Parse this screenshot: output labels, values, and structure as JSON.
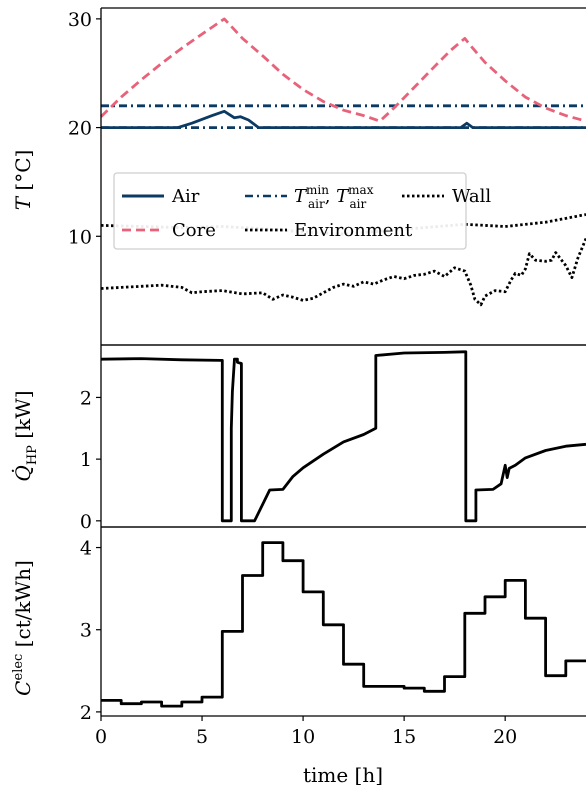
{
  "chart_data": [
    {
      "type": "line",
      "panel": "temperatures",
      "ylabel": "T [°C]",
      "ylim": [
        0,
        31
      ],
      "yticks": [
        "10",
        "20",
        "30"
      ],
      "legend_placement": "center-left",
      "legend": [
        {
          "label": "Air",
          "series": "Air"
        },
        {
          "label": "T_air^min, T_air^max",
          "series": "Tmin"
        },
        {
          "label": "Wall",
          "series": "Wall"
        },
        {
          "label": "Core",
          "series": "Core"
        },
        {
          "label": "Environment",
          "series": "Environment"
        }
      ],
      "series": [
        {
          "name": "Air",
          "color": "#0b3a63",
          "dash": "solid",
          "x": [
            0,
            3.8,
            4.5,
            5.5,
            6.1,
            6.6,
            6.9,
            7.3,
            7.8,
            8.2,
            17.8,
            18.1,
            18.4,
            24
          ],
          "y": [
            20,
            20,
            20.4,
            21.1,
            21.5,
            20.9,
            21.0,
            20.7,
            20.0,
            20.0,
            20.0,
            20.4,
            20.0,
            20.0
          ]
        },
        {
          "name": "Tmin",
          "color": "#0b3a63",
          "dash": "dashdot",
          "x": [
            0,
            24
          ],
          "y": [
            20,
            20
          ]
        },
        {
          "name": "Tmax",
          "color": "#0b3a63",
          "dash": "dashdot",
          "x": [
            0,
            24
          ],
          "y": [
            22,
            22
          ]
        },
        {
          "name": "Core",
          "color": "#e8627a",
          "dash": "dashed",
          "x": [
            0,
            1,
            2,
            3,
            4,
            5,
            6.1,
            6.6,
            7,
            8,
            9,
            10,
            11,
            12,
            13,
            13.8,
            14.5,
            15.5,
            16.5,
            17.3,
            18,
            18.4,
            19,
            20,
            21,
            22,
            23,
            24
          ],
          "y": [
            21,
            22.8,
            24.4,
            25.9,
            27.3,
            28.6,
            30.0,
            29.0,
            28.2,
            26.6,
            24.9,
            23.5,
            22.4,
            21.6,
            21.1,
            20.6,
            21.8,
            23.7,
            25.6,
            27.1,
            28.2,
            27.3,
            26.0,
            24.3,
            22.8,
            21.8,
            21.1,
            20.6
          ]
        },
        {
          "name": "Wall",
          "color": "#000000",
          "dash": "dotted",
          "x": [
            0,
            2,
            4,
            6,
            8,
            10,
            12,
            14,
            16,
            18,
            20,
            22,
            24
          ],
          "y": [
            11.0,
            10.9,
            10.8,
            10.9,
            10.7,
            10.4,
            10.2,
            10.5,
            10.8,
            11.1,
            10.9,
            11.3,
            12.0
          ]
        },
        {
          "name": "Environment",
          "color": "#000000",
          "dash": "dotted",
          "x": [
            0,
            1,
            2,
            3,
            4,
            4.5,
            5,
            6,
            7,
            8,
            8.5,
            9,
            9.5,
            10,
            10.5,
            11,
            11.5,
            12,
            12.5,
            13,
            13.5,
            14,
            14.5,
            15,
            15.5,
            16,
            16.5,
            17,
            17.5,
            18,
            18.3,
            18.5,
            18.8,
            19,
            19.5,
            20,
            20.3,
            20.5,
            20.8,
            21,
            21.2,
            21.5,
            22,
            22.3,
            22.5,
            23,
            23.3,
            23.6,
            24
          ],
          "y": [
            5.2,
            5.3,
            5.4,
            5.5,
            5.3,
            4.8,
            4.9,
            5.0,
            4.7,
            4.8,
            4.2,
            4.6,
            4.4,
            4.1,
            4.3,
            4.8,
            5.3,
            5.6,
            5.4,
            5.8,
            5.6,
            6.0,
            6.3,
            6.1,
            6.4,
            6.5,
            6.8,
            6.3,
            7.1,
            6.8,
            5.5,
            4.2,
            3.7,
            4.5,
            5.0,
            4.9,
            6.0,
            6.6,
            6.4,
            7.0,
            8.4,
            7.8,
            7.7,
            7.8,
            8.5,
            7.3,
            6.2,
            8.0,
            9.8
          ]
        }
      ]
    },
    {
      "type": "line",
      "panel": "heat_pump",
      "ylabel": "Q̇_HP [kW]",
      "ylim": [
        -0.1,
        2.85
      ],
      "yticks": [
        "0",
        "1",
        "2"
      ],
      "series": [
        {
          "name": "Q_HP",
          "color": "#000000",
          "dash": "solid",
          "x": [
            0,
            2,
            4,
            5.9,
            6.0,
            6.0,
            6.45,
            6.45,
            6.5,
            6.6,
            6.6,
            6.75,
            6.75,
            6.95,
            6.95,
            7.0,
            7.0,
            7.6,
            7.6,
            8.35,
            8.35,
            9.0,
            9.5,
            10,
            11,
            12,
            13,
            13.6,
            13.6,
            15,
            17,
            17.95,
            17.95,
            18.05,
            18.05,
            18.55,
            18.55,
            19.4,
            19.8,
            20.0,
            20.1,
            20.2,
            20.5,
            21,
            22,
            23,
            24
          ],
          "y": [
            2.62,
            2.63,
            2.61,
            2.6,
            2.6,
            0,
            0,
            1.5,
            2.1,
            2.6,
            2.62,
            2.62,
            2.57,
            2.55,
            0,
            0,
            0,
            0,
            0,
            0.5,
            0.5,
            0.51,
            0.72,
            0.86,
            1.08,
            1.28,
            1.4,
            1.5,
            2.68,
            2.72,
            2.73,
            2.74,
            2.74,
            2.74,
            0,
            0,
            0.5,
            0.51,
            0.6,
            0.9,
            0.7,
            0.85,
            0.9,
            1.02,
            1.14,
            1.21,
            1.24
          ]
        }
      ]
    },
    {
      "type": "line",
      "panel": "price",
      "ylabel": "C^elec [ct/kWh]",
      "xlabel": "time [h]",
      "xlim": [
        0,
        24
      ],
      "xticks": [
        "0",
        "5",
        "10",
        "15",
        "20"
      ],
      "ylim": [
        1.95,
        4.25
      ],
      "yticks": [
        "2",
        "3",
        "4"
      ],
      "series": [
        {
          "name": "C_elec",
          "color": "#000000",
          "dash": "solid",
          "step": "post",
          "x": [
            0,
            1,
            2,
            3,
            4,
            5,
            6,
            7,
            8,
            9,
            10,
            11,
            12,
            13,
            14,
            15,
            16,
            17,
            18,
            19,
            20,
            21,
            22,
            23,
            24
          ],
          "y": [
            2.14,
            2.1,
            2.12,
            2.07,
            2.12,
            2.18,
            2.98,
            3.66,
            4.06,
            3.84,
            3.46,
            3.06,
            2.58,
            2.31,
            2.31,
            2.29,
            2.25,
            2.43,
            3.2,
            3.4,
            3.6,
            3.14,
            2.44,
            2.62,
            2.62
          ]
        }
      ]
    }
  ]
}
